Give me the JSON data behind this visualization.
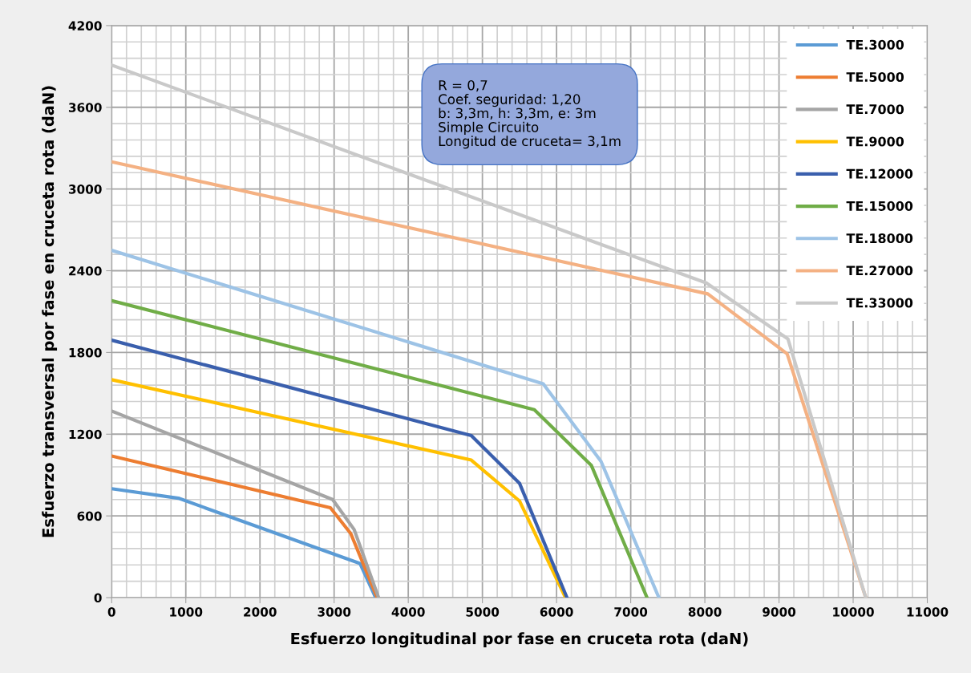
{
  "chart_data": {
    "type": "line",
    "xlabel": "Esfuerzo longitudinal por fase en cruceta rota (daN)",
    "ylabel": "Esfuerzo transversal por fase en cruceta rota (daN)",
    "xlim": [
      0,
      11000
    ],
    "xticks": [
      0,
      1000,
      2000,
      3000,
      4000,
      5000,
      6000,
      7000,
      8000,
      9000,
      10000,
      11000
    ],
    "ylim": [
      0,
      4200
    ],
    "yticks": [
      0,
      600,
      1200,
      1800,
      2400,
      3000,
      3600,
      4200
    ],
    "grid": true,
    "legend": "top right",
    "marker": "none",
    "line_style": "solid",
    "annotations": [
      "R = 0,7\nCoef. seguridad: 1,20\nb: 3,3m, h: 3,3m, e: 3m\nSimple Circuito\nLongitud de cruceta= 3,1m"
    ],
    "series": [
      {
        "name": "TE.3000",
        "color": "#5b9bd5",
        "x": [
          0,
          900,
          3350,
          3560
        ],
        "values": [
          800,
          730,
          250,
          0
        ]
      },
      {
        "name": "TE.5000",
        "color": "#ed7d31",
        "x": [
          0,
          2950,
          3225,
          3580
        ],
        "values": [
          1040,
          660,
          470,
          0
        ]
      },
      {
        "name": "TE.7000",
        "color": "#a5a5a5",
        "x": [
          0,
          2980,
          3270,
          3600
        ],
        "values": [
          1370,
          720,
          500,
          0
        ]
      },
      {
        "name": "TE.9000",
        "color": "#ffc000",
        "x": [
          0,
          4850,
          5500,
          6120
        ],
        "values": [
          1600,
          1010,
          710,
          0
        ]
      },
      {
        "name": "TE.12000",
        "color": "#3a5fad",
        "x": [
          0,
          4850,
          5500,
          6140
        ],
        "values": [
          1890,
          1190,
          840,
          0
        ]
      },
      {
        "name": "TE.15000",
        "color": "#70ad47",
        "x": [
          0,
          5700,
          6470,
          7220
        ],
        "values": [
          2180,
          1380,
          970,
          0
        ]
      },
      {
        "name": "TE.18000",
        "color": "#9dc3e6",
        "x": [
          0,
          5820,
          6600,
          7380
        ],
        "values": [
          2550,
          1570,
          1000,
          0
        ]
      },
      {
        "name": "TE.27000",
        "color": "#f4b183",
        "x": [
          0,
          8040,
          9110,
          10170
        ],
        "values": [
          3200,
          2230,
          1790,
          0
        ]
      },
      {
        "name": "TE.33000",
        "color": "#c9c9c9",
        "x": [
          0,
          8020,
          9120,
          10170
        ],
        "values": [
          3910,
          2310,
          1900,
          0
        ]
      }
    ]
  }
}
